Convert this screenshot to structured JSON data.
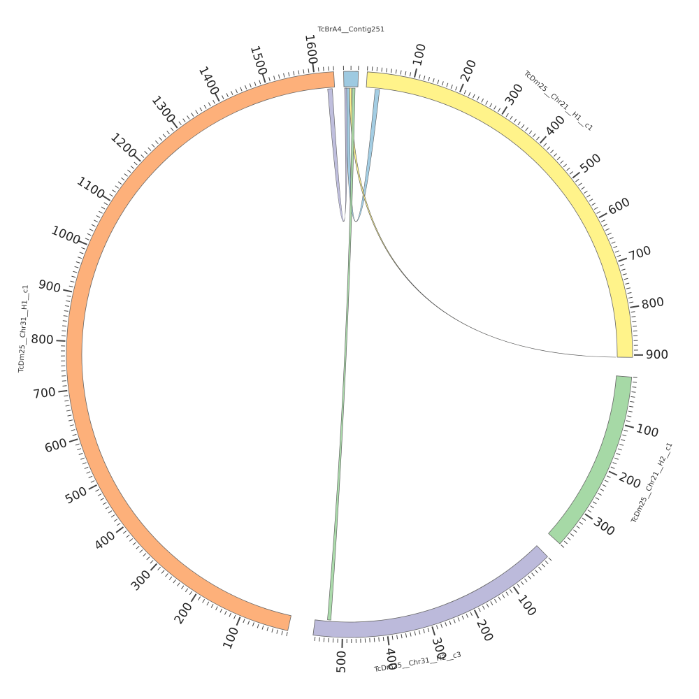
{
  "segments": [
    {
      "id": "contig",
      "label": "TcBrA4__Contig251",
      "color": "#9ecae1",
      "length": 20,
      "tick_labels": []
    },
    {
      "id": "chr21h1",
      "label": "TcDm25__Chr21__H1__c1",
      "color": "#fff38a",
      "length": 905,
      "tick_labels": [
        "100",
        "200",
        "300",
        "400",
        "500",
        "600",
        "700",
        "800",
        "900"
      ]
    },
    {
      "id": "chr21h2",
      "label": "TcDm25__Chr21__H2__c1",
      "color": "#a6d9a6",
      "length": 380,
      "tick_labels": [
        "100",
        "200",
        "300"
      ]
    },
    {
      "id": "chr31h2",
      "label": "TcDm25__Chr31__H2__c3",
      "color": "#bcbadb",
      "length": 565,
      "tick_labels": [
        "100",
        "200",
        "300",
        "400",
        "500"
      ]
    },
    {
      "id": "chr31h1",
      "label": "TcDm25__Chr31__H1__c1",
      "color": "#fdb07a",
      "length": 1640,
      "tick_labels": [
        "100",
        "200",
        "300",
        "400",
        "500",
        "600",
        "700",
        "800",
        "900",
        "1000",
        "1100",
        "1200",
        "1300",
        "1400",
        "1500",
        "1600"
      ]
    }
  ],
  "links": [
    {
      "from": "contig",
      "to": "chr21h1",
      "color": "#9ecae1"
    },
    {
      "from": "contig",
      "to": "chr21h1",
      "color": "#fff38a"
    },
    {
      "from": "contig",
      "to": "chr31h2",
      "color": "#a6d9a6"
    },
    {
      "from": "contig",
      "to": "chr31h1",
      "color": "#bcbadb"
    }
  ]
}
